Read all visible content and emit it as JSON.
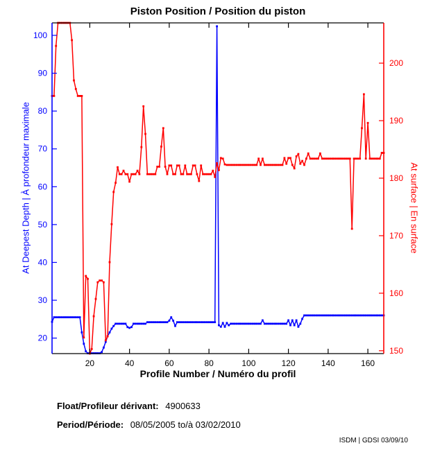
{
  "chart_data": {
    "type": "line",
    "title": "Piston Position / Position du piston",
    "xlabel": "Profile Number / Numéro du profil",
    "ylabel_left": "At Deepest Depth | À profondeur maximale",
    "ylabel_right": "At surface | En surface",
    "grid": false,
    "legend": "none",
    "x": {
      "start": 1,
      "step": 1,
      "count": 168
    },
    "xlim": [
      1,
      168
    ],
    "xticks": [
      20,
      40,
      60,
      80,
      100,
      120,
      140,
      160
    ],
    "ylim_left": [
      15.9,
      103.3
    ],
    "yticks_left": [
      20,
      30,
      40,
      50,
      60,
      70,
      80,
      90,
      100
    ],
    "ylim_right": [
      149.5,
      207.0
    ],
    "yticks_right": [
      150,
      160,
      170,
      180,
      190,
      200
    ],
    "axis_colors": {
      "left": "#0000ff",
      "right": "#ff0000",
      "bottom": "#000000",
      "top": "#000000"
    },
    "series": [
      {
        "id": "deepest-depth",
        "name": "At Deepest Depth | À profondeur maximale",
        "axis": "left",
        "color": "#0000ff",
        "marker": "square",
        "values": [
          24.3,
          25.5,
          25.5,
          25.5,
          25.5,
          25.5,
          25.5,
          25.5,
          25.5,
          25.5,
          25.5,
          25.5,
          25.5,
          25.5,
          25.5,
          21.5,
          18.5,
          16.5,
          16,
          16,
          16,
          16,
          16,
          16,
          16,
          16.3,
          17.5,
          19,
          20.5,
          21.5,
          22.5,
          23.2,
          23.8,
          23.8,
          23.8,
          23.8,
          23.8,
          23.8,
          22.9,
          22.7,
          22.9,
          23.8,
          23.8,
          23.8,
          23.8,
          23.8,
          23.8,
          23.8,
          24.2,
          24.2,
          24.2,
          24.2,
          24.2,
          24.2,
          24.2,
          24.2,
          24.2,
          24.2,
          24.2,
          24.6,
          25.5,
          24.6,
          23.2,
          24.2,
          24.2,
          24.2,
          24.2,
          24.2,
          24.2,
          24.2,
          24.2,
          24.2,
          24.2,
          24.2,
          24.2,
          24.2,
          24.2,
          24.2,
          24.2,
          24.2,
          24.2,
          24.2,
          24.2,
          102.4,
          23.4,
          23,
          24,
          23,
          24,
          23.4,
          23.8,
          23.8,
          23.8,
          23.8,
          23.8,
          23.8,
          23.8,
          23.8,
          23.8,
          23.8,
          23.8,
          23.8,
          23.8,
          23.8,
          23.8,
          23.8,
          24.7,
          23.8,
          23.8,
          23.8,
          23.8,
          23.8,
          23.8,
          23.8,
          23.8,
          23.8,
          23.8,
          23.8,
          23.8,
          24.7,
          23.4,
          24.7,
          23.4,
          24.7,
          23,
          23.8,
          25.1,
          26,
          26,
          26,
          26,
          26,
          26,
          26,
          26,
          26,
          26,
          26,
          26,
          26,
          26,
          26,
          26,
          26,
          26,
          26,
          26,
          26,
          26,
          26,
          26,
          26,
          26,
          26,
          26,
          26,
          26,
          26,
          26,
          26,
          26,
          26,
          26,
          26,
          26,
          26,
          26,
          26
        ]
      },
      {
        "id": "surface",
        "name": "At surface | En surface",
        "axis": "right",
        "color": "#ff0000",
        "marker": "square",
        "values": [
          194.3,
          194.3,
          203,
          207,
          207,
          207,
          207,
          207,
          207,
          207,
          204,
          197,
          195.5,
          194.3,
          194.3,
          194.3,
          152.3,
          163,
          162.5,
          149.5,
          150.3,
          156,
          159,
          161.9,
          162.2,
          162.2,
          161.9,
          151.8,
          152.5,
          165.4,
          172,
          177.6,
          179.2,
          181.9,
          180.7,
          180.7,
          181.3,
          180.7,
          180.7,
          179.4,
          180.7,
          180.7,
          180.7,
          181.3,
          180.7,
          185.4,
          192.5,
          187.7,
          180.7,
          180.7,
          180.7,
          180.7,
          180.7,
          182,
          182,
          185.5,
          188.7,
          182,
          180.7,
          182.2,
          182.2,
          180.7,
          180.7,
          182.2,
          182.2,
          180.7,
          180.7,
          182.2,
          180.7,
          180.7,
          180.7,
          182.2,
          182.2,
          180.7,
          179.5,
          182.2,
          180.7,
          180.7,
          180.7,
          180.7,
          180.7,
          181.3,
          180.2,
          182.6,
          181.4,
          183.5,
          183.4,
          182.4,
          182.3,
          182.3,
          182.3,
          182.3,
          182.3,
          182.3,
          182.3,
          182.3,
          182.3,
          182.3,
          182.3,
          182.3,
          182.3,
          182.3,
          182.3,
          182.3,
          183.4,
          182.3,
          183.4,
          182.3,
          182.3,
          182.3,
          182.3,
          182.3,
          182.3,
          182.3,
          182.3,
          182.3,
          182.3,
          183.5,
          182.5,
          183.5,
          183.5,
          182.3,
          181.7,
          183.8,
          184.2,
          182.5,
          183,
          182.3,
          183.4,
          184.3,
          183.4,
          183.4,
          183.4,
          183.4,
          183.4,
          184.3,
          183.4,
          183.4,
          183.4,
          183.4,
          183.4,
          183.4,
          183.4,
          183.4,
          183.4,
          183.4,
          183.4,
          183.4,
          183.4,
          183.4,
          183.4,
          171.2,
          183.4,
          183.4,
          183.4,
          183.4,
          188.7,
          194.6,
          183.4,
          189.6,
          183.4,
          183.4,
          183.4,
          183.4,
          183.4,
          183.4,
          184.4,
          184.4
        ]
      }
    ]
  },
  "footer": {
    "float_label": "Float/Profileur dérivant:",
    "float_value": "4900633",
    "period_label": "Period/Période:",
    "period_value": "08/05/2005  to/à  03/02/2010",
    "credit": "ISDM | GDSI 03/09/10"
  }
}
